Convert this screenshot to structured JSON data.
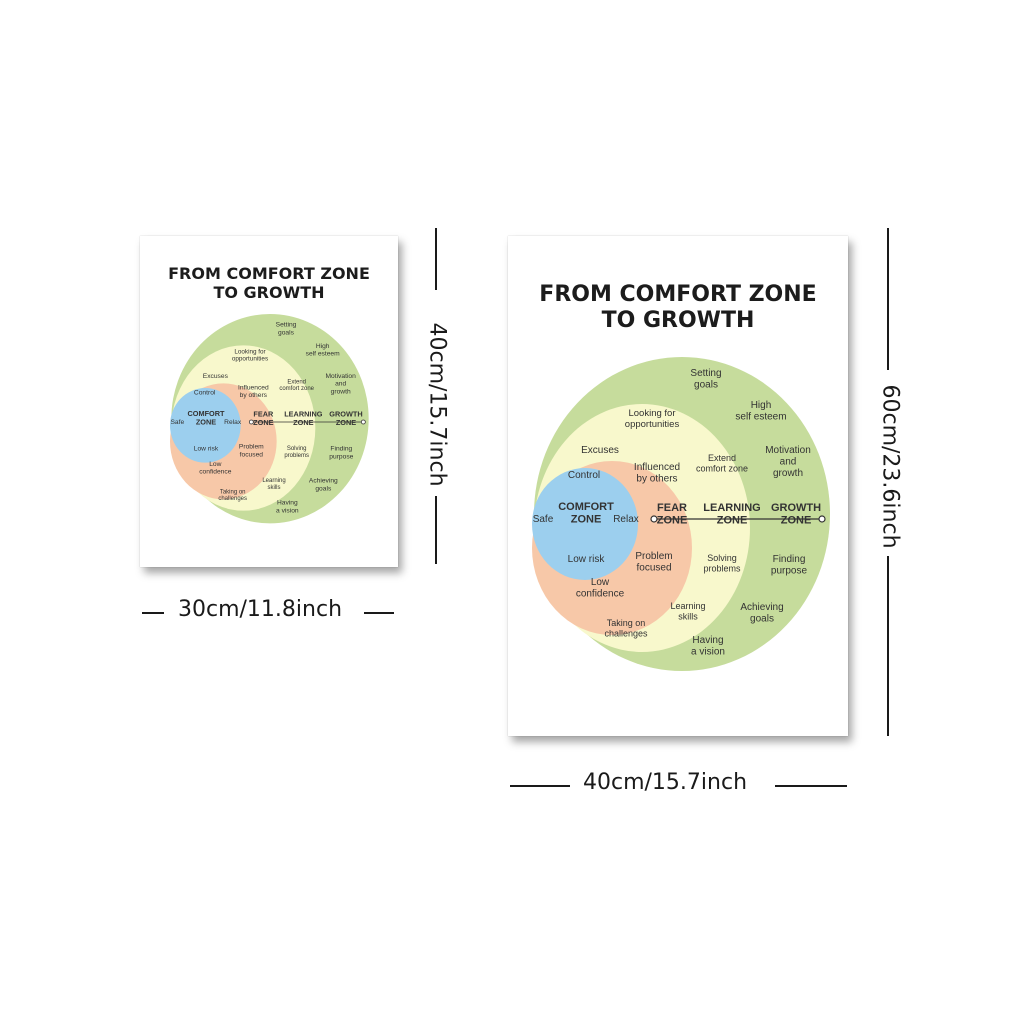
{
  "poster": {
    "title_line1": "FROM COMFORT ZONE",
    "title_line2": "TO GROWTH",
    "colors": {
      "comfort": "#9ccfee",
      "fear": "#f7c8a8",
      "learning": "#f8f8cc",
      "growth": "#c6dc9c",
      "text": "#333333"
    },
    "zones": {
      "comfort": {
        "line1": "COMFORT",
        "line2": "ZONE"
      },
      "fear": {
        "line1": "FEAR",
        "line2": "ZONE"
      },
      "learning": {
        "line1": "LEARNING",
        "line2": "ZONE"
      },
      "growth": {
        "line1": "GROWTH",
        "line2": "ZONE"
      }
    },
    "words": {
      "safe": "Safe",
      "relax": "Relax",
      "control": "Control",
      "low_risk": "Low risk",
      "excuses": "Excuses",
      "influenced": [
        "Influenced",
        "by others"
      ],
      "problem_focused": [
        "Problem",
        "focused"
      ],
      "low_confidence": [
        "Low",
        "confidence"
      ],
      "looking": [
        "Looking for",
        "opportunities"
      ],
      "extend": [
        "Extend",
        "comfort zone"
      ],
      "solving": [
        "Solving",
        "problems"
      ],
      "learning_skills": [
        "Learning",
        "skills"
      ],
      "taking": [
        "Taking on",
        "challenges"
      ],
      "setting": [
        "Setting",
        "goals"
      ],
      "high_esteem": [
        "High",
        "self esteem"
      ],
      "motivation": [
        "Motivation",
        "and",
        "growth"
      ],
      "finding": [
        "Finding",
        "purpose"
      ],
      "achieving": [
        "Achieving",
        "goals"
      ],
      "vision": [
        "Having",
        "a vision"
      ]
    }
  },
  "dimensions": {
    "small_width": "30cm/11.8inch",
    "small_height": "40cm/15.7inch",
    "large_width": "40cm/15.7inch",
    "large_height": "60cm/23.6inch"
  }
}
